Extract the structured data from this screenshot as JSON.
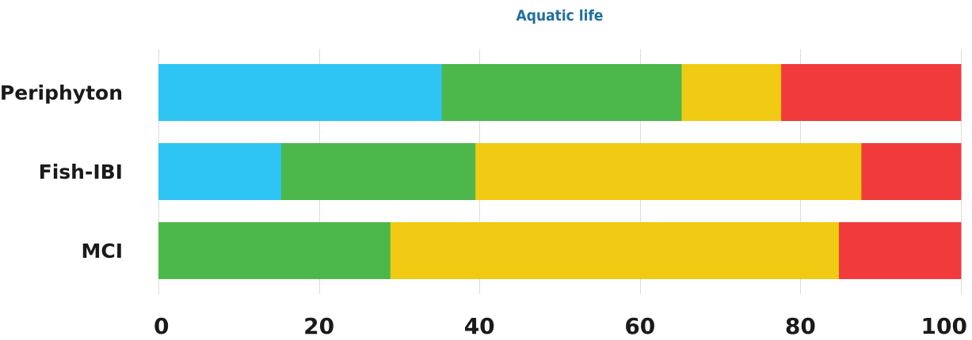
{
  "chart_data": {
    "type": "bar",
    "orientation": "horizontal",
    "stacked": true,
    "title": "Aquatic life",
    "xlabel": "",
    "ylabel": "",
    "xlim": [
      0,
      100
    ],
    "xticks": [
      "0",
      "20",
      "40",
      "60",
      "80",
      "100"
    ],
    "categories": [
      "Periphyton",
      "Fish-IBI",
      "MCI"
    ],
    "series": [
      {
        "color": "#2ec5f4",
        "values": [
          35.3,
          15.3,
          0
        ]
      },
      {
        "color": "#4cb84c",
        "values": [
          29.9,
          24.2,
          28.9
        ]
      },
      {
        "color": "#f0ca13",
        "values": [
          12.4,
          48.1,
          55.9
        ]
      },
      {
        "color": "#f03a3c",
        "values": [
          22.4,
          12.4,
          15.2
        ]
      }
    ],
    "grid": true,
    "legend": "none"
  }
}
